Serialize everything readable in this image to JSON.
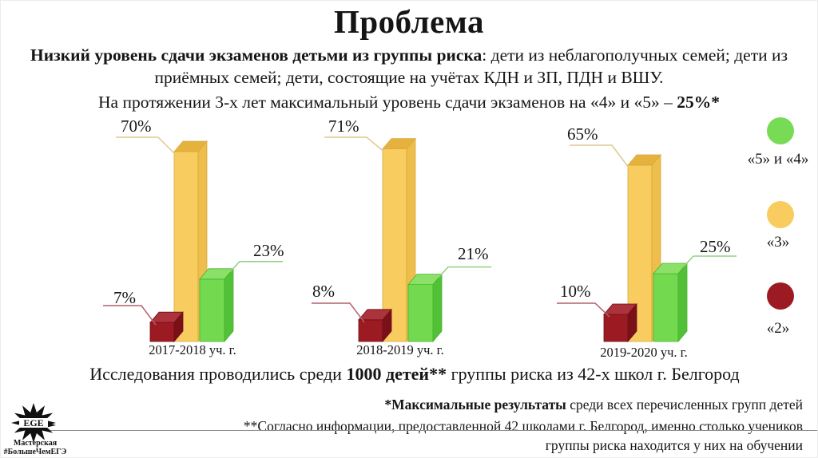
{
  "slide": {
    "title": "Проблема",
    "problem_bold": "Низкий уровень сдачи экзаменов детьми из группы риска",
    "problem_rest": ": дети из неблагополучных семей; дети из приёмных семей; дети, состоящие на учётах КДН и ЗП, ПДН и ВШУ.",
    "statement_prefix": "На протяжении 3-х лет максимальный уровень сдачи экзаменов на «4» и «5» – ",
    "statement_bold": "25%*",
    "research_prefix": "Исследования проводились среди ",
    "research_bold": "1000 детей**",
    "research_suffix": " группы риска из 42-х школ г. Белгород",
    "footnote1_bold": "*Максимальные результаты",
    "footnote1_rest": " среди всех перечисленных групп детей",
    "footnote2_line1": "**Согласно информации, предоставленной 42 школами г. Белгород, именно столько учеников",
    "footnote2_line2": "группы риска находится у них на обучении"
  },
  "logo": {
    "star_text": "EGE",
    "line1": "Мастерская",
    "line2": "#БольшеЧемЕГЭ"
  },
  "legend": {
    "position": "right",
    "items": [
      {
        "label": "«5» и «4»",
        "color": "#77DB55"
      },
      {
        "label": "«3»",
        "color": "#F8CC5F"
      },
      {
        "label": "«2»",
        "color": "#9C1B23"
      }
    ]
  },
  "chart_data": {
    "type": "bar",
    "title": "Уровень сдачи экзаменов детьми из группы риска по учебным годам",
    "unit": "%",
    "ylim": [
      0,
      100
    ],
    "grid": false,
    "legend_position": "right",
    "categories": [
      "2017-2018 уч. г.",
      "2018-2019 уч. г.",
      "2019-2020 уч. г."
    ],
    "series": [
      {
        "name": "«2»",
        "color": "#9C1B23",
        "values": [
          7,
          8,
          10
        ]
      },
      {
        "name": "«3»",
        "color": "#F8CC5F",
        "values": [
          70,
          71,
          65
        ]
      },
      {
        "name": "«5» и «4»",
        "color": "#77DB55",
        "values": [
          23,
          21,
          25
        ]
      }
    ],
    "value_labels": [
      [
        "7%",
        "70%",
        "23%"
      ],
      [
        "8%",
        "71%",
        "21%"
      ],
      [
        "10%",
        "65%",
        "25%"
      ]
    ]
  }
}
